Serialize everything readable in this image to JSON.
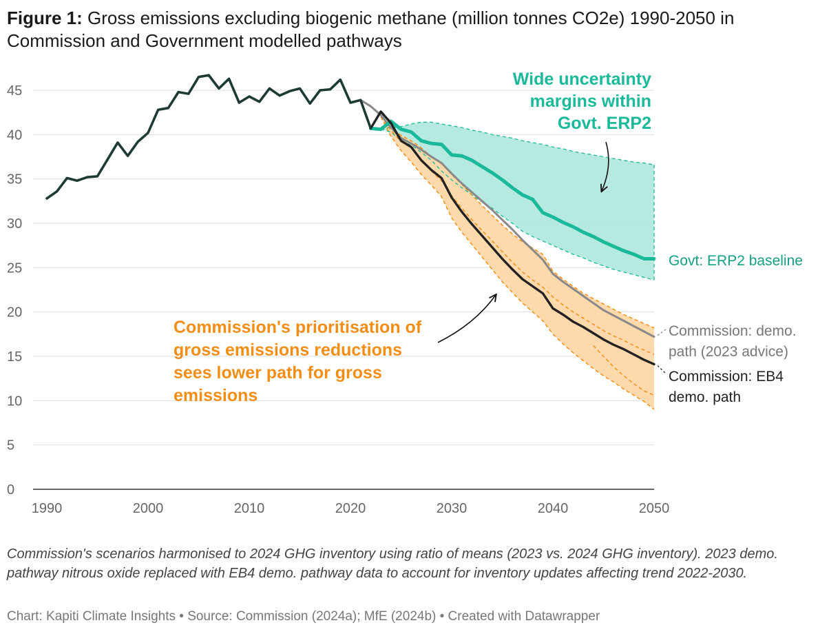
{
  "figure_label": "Figure 1:",
  "title": "Gross emissions excluding biogenic methane (million tonnes CO2e) 1990-2050 in Commission and Government modelled pathways",
  "note": "Commission's scenarios harmonised to 2024 GHG inventory using ratio of means (2023 vs. 2024 GHG inventory). 2023 demo. pathway nitrous oxide replaced with EB4 demo. pathway data to account for inventory updates affecting trend 2022-2030.",
  "credit": "Chart: Kapiti Climate Insights • Source: Commission (2024a); MfE (2024b) • Created with Datawrapper",
  "colors": {
    "historic": "#1e3a34",
    "govt": "#1ab99a",
    "govt_band": "#b2e8dd",
    "commission_2023": "#888888",
    "eb4": "#222222",
    "orange_band": "#fdd7a8",
    "orange": "#f28e16"
  },
  "chart_data": {
    "type": "line",
    "xlim": [
      1990,
      2050
    ],
    "ylim": [
      0,
      45
    ],
    "x_ticks": [
      1990,
      2000,
      2010,
      2020,
      2030,
      2040,
      2050
    ],
    "y_ticks": [
      0,
      5,
      10,
      15,
      20,
      25,
      30,
      35,
      40,
      45
    ],
    "grid": true,
    "series": [
      {
        "id": "historic",
        "x": [
          1990,
          1991,
          1992,
          1993,
          1994,
          1995,
          1996,
          1997,
          1998,
          1999,
          2000,
          2001,
          2002,
          2003,
          2004,
          2005,
          2006,
          2007,
          2008,
          2009,
          2010,
          2011,
          2012,
          2013,
          2014,
          2015,
          2016,
          2017,
          2018,
          2019,
          2020,
          2021,
          2022
        ],
        "y": [
          32.8,
          33.6,
          35.1,
          34.8,
          35.2,
          35.3,
          37.2,
          39.1,
          37.6,
          39.2,
          40.2,
          42.8,
          43.0,
          44.8,
          44.6,
          46.5,
          46.7,
          45.2,
          46.3,
          43.6,
          44.3,
          43.7,
          45.2,
          44.4,
          44.9,
          45.2,
          43.5,
          45.0,
          45.1,
          46.2,
          43.6,
          43.9,
          40.7
        ]
      },
      {
        "id": "commission_2023",
        "name": "Commission: demo. path (2023 advice)",
        "x": [
          2021,
          2022,
          2023,
          2024,
          2025,
          2026,
          2027,
          2028,
          2029,
          2030,
          2031,
          2032,
          2033,
          2034,
          2035,
          2036,
          2037,
          2038,
          2039,
          2040,
          2041,
          2042,
          2043,
          2044,
          2045,
          2046,
          2047,
          2048,
          2049,
          2050
        ],
        "y": [
          43.9,
          43.2,
          42.2,
          40.8,
          39.6,
          39.0,
          38.3,
          37.5,
          36.8,
          35.6,
          34.5,
          33.5,
          32.5,
          31.5,
          30.4,
          29.3,
          28.1,
          27.0,
          25.9,
          24.3,
          23.4,
          22.6,
          21.8,
          21.0,
          20.2,
          19.6,
          19.0,
          18.4,
          17.8,
          17.2
        ]
      },
      {
        "id": "eb4",
        "name": "Commission: EB4 demo. path",
        "x": [
          2022,
          2023,
          2024,
          2025,
          2026,
          2027,
          2028,
          2029,
          2030,
          2031,
          2032,
          2033,
          2034,
          2035,
          2036,
          2037,
          2038,
          2039,
          2040,
          2041,
          2042,
          2043,
          2044,
          2045,
          2046,
          2047,
          2048,
          2049,
          2050
        ],
        "y": [
          40.7,
          42.6,
          41.3,
          39.3,
          38.6,
          37.1,
          36.0,
          35.1,
          32.9,
          31.3,
          29.9,
          28.6,
          27.3,
          26.0,
          24.8,
          23.7,
          22.9,
          22.1,
          20.4,
          19.7,
          18.9,
          18.3,
          17.6,
          16.9,
          16.3,
          15.8,
          15.2,
          14.6,
          14.1
        ]
      },
      {
        "id": "govt",
        "name": "Govt: ERP2 baseline",
        "x": [
          2022,
          2023,
          2024,
          2025,
          2026,
          2027,
          2028,
          2029,
          2030,
          2031,
          2032,
          2033,
          2034,
          2035,
          2036,
          2037,
          2038,
          2039,
          2040,
          2041,
          2042,
          2043,
          2044,
          2045,
          2046,
          2047,
          2048,
          2049,
          2050
        ],
        "y": [
          40.7,
          40.6,
          41.5,
          40.6,
          40.3,
          39.3,
          39.0,
          38.9,
          37.7,
          37.6,
          37.1,
          36.4,
          35.7,
          34.9,
          34.0,
          33.2,
          32.7,
          31.2,
          30.7,
          30.1,
          29.6,
          29.0,
          28.5,
          27.9,
          27.4,
          26.9,
          26.5,
          26.0,
          26.0
        ]
      }
    ],
    "bands": [
      {
        "id": "govt_uncertainty",
        "x": [
          2023,
          2024,
          2025,
          2026,
          2027,
          2028,
          2029,
          2030,
          2031,
          2032,
          2033,
          2034,
          2035,
          2036,
          2037,
          2038,
          2039,
          2040,
          2041,
          2042,
          2043,
          2044,
          2045,
          2046,
          2047,
          2048,
          2049,
          2050
        ],
        "upper": [
          40.6,
          40.8,
          40.9,
          41.2,
          41.4,
          41.4,
          41.2,
          41.0,
          40.8,
          40.5,
          40.3,
          40.0,
          39.8,
          39.6,
          39.3,
          39.1,
          38.9,
          38.6,
          38.4,
          38.1,
          37.9,
          37.7,
          37.5,
          37.3,
          37.1,
          36.9,
          36.8,
          36.6
        ],
        "lower": [
          40.6,
          40.3,
          39.3,
          38.8,
          38.0,
          37.1,
          35.9,
          34.9,
          34.0,
          33.2,
          32.4,
          31.7,
          30.8,
          30.0,
          29.1,
          28.5,
          28.0,
          27.5,
          27.0,
          26.5,
          26.1,
          25.6,
          25.2,
          24.8,
          24.5,
          24.2,
          23.9,
          23.6
        ]
      },
      {
        "id": "commission_range",
        "x": [
          2023,
          2024,
          2025,
          2026,
          2027,
          2028,
          2029,
          2030,
          2031,
          2032,
          2033,
          2034,
          2035,
          2036,
          2037,
          2038,
          2039,
          2040,
          2041,
          2042,
          2043,
          2044,
          2045,
          2046,
          2047,
          2048,
          2049,
          2050
        ],
        "upper": [
          42.0,
          40.8,
          39.9,
          39.3,
          38.5,
          37.5,
          36.7,
          35.5,
          34.4,
          33.2,
          32.0,
          30.9,
          29.8,
          28.8,
          27.9,
          27.2,
          26.5,
          24.6,
          23.7,
          22.9,
          22.1,
          21.5,
          20.9,
          20.3,
          19.7,
          19.2,
          18.7,
          18.2
        ],
        "mid": [
          42.0,
          40.5,
          39.2,
          38.5,
          37.1,
          35.9,
          34.8,
          33.1,
          31.7,
          30.4,
          29.2,
          28.0,
          26.8,
          25.6,
          24.5,
          23.6,
          22.8,
          21.7,
          20.8,
          20.0,
          19.3,
          18.6,
          17.9,
          17.3,
          16.8,
          16.2,
          15.7,
          15.2
        ],
        "lower": [
          42.0,
          39.8,
          38.2,
          36.9,
          35.5,
          34.3,
          33.0,
          30.6,
          29.0,
          27.6,
          26.2,
          24.8,
          23.4,
          22.2,
          21.0,
          20.0,
          19.0,
          17.5,
          16.4,
          15.4,
          14.5,
          13.6,
          12.8,
          12.1,
          11.3,
          10.6,
          9.9,
          9.0
        ],
        "lower2": [
          null,
          null,
          null,
          null,
          null,
          null,
          null,
          null,
          null,
          null,
          null,
          null,
          null,
          null,
          null,
          null,
          null,
          null,
          null,
          null,
          null,
          16.2,
          15.0,
          13.8,
          12.8,
          11.9,
          11.1,
          10.6
        ]
      }
    ],
    "annotations": {
      "govt_callout": [
        "Wide uncertainty",
        "margins within",
        "Govt. ERP2"
      ],
      "commission_callout": [
        "Commission's prioritisation of",
        "gross emissions reductions",
        "sees lower path for gross",
        "emissions"
      ],
      "label_govt": "Govt: ERP2 baseline",
      "label_commission_2023": [
        "Commission: demo.",
        "path (2023 advice)"
      ],
      "label_eb4": [
        "Commission: EB4",
        "demo. path"
      ]
    }
  }
}
